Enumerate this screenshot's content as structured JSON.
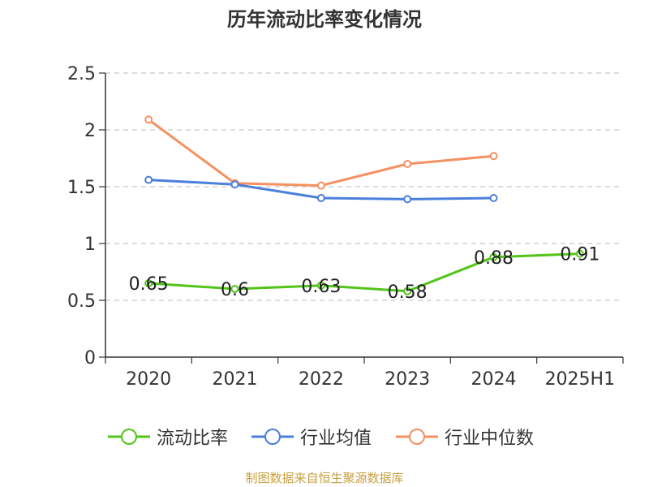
{
  "chart_data": {
    "type": "line",
    "title": "历年流动比率变化情况",
    "categories": [
      "2020",
      "2021",
      "2022",
      "2023",
      "2024",
      "2025H1"
    ],
    "ylim": [
      0,
      2.5
    ],
    "yticks": [
      "0",
      "0.5",
      "1",
      "1.5",
      "2",
      "2.5"
    ],
    "grid": true,
    "legend_position": "bottom",
    "series": [
      {
        "name": "流动比率",
        "color": "#52c41a",
        "values": [
          0.65,
          0.6,
          0.63,
          0.58,
          0.88,
          0.91
        ],
        "labels": [
          "0.65",
          "0.6",
          "0.63",
          "0.58",
          "0.88",
          "0.91"
        ]
      },
      {
        "name": "行业均值",
        "color": "#4a7fdc",
        "values": [
          1.56,
          1.52,
          1.4,
          1.39,
          1.4,
          null
        ]
      },
      {
        "name": "行业中位数",
        "color": "#f59060",
        "values": [
          2.09,
          1.53,
          1.51,
          1.7,
          1.77,
          null
        ]
      }
    ]
  },
  "source": "制图数据来自恒生聚源数据库"
}
